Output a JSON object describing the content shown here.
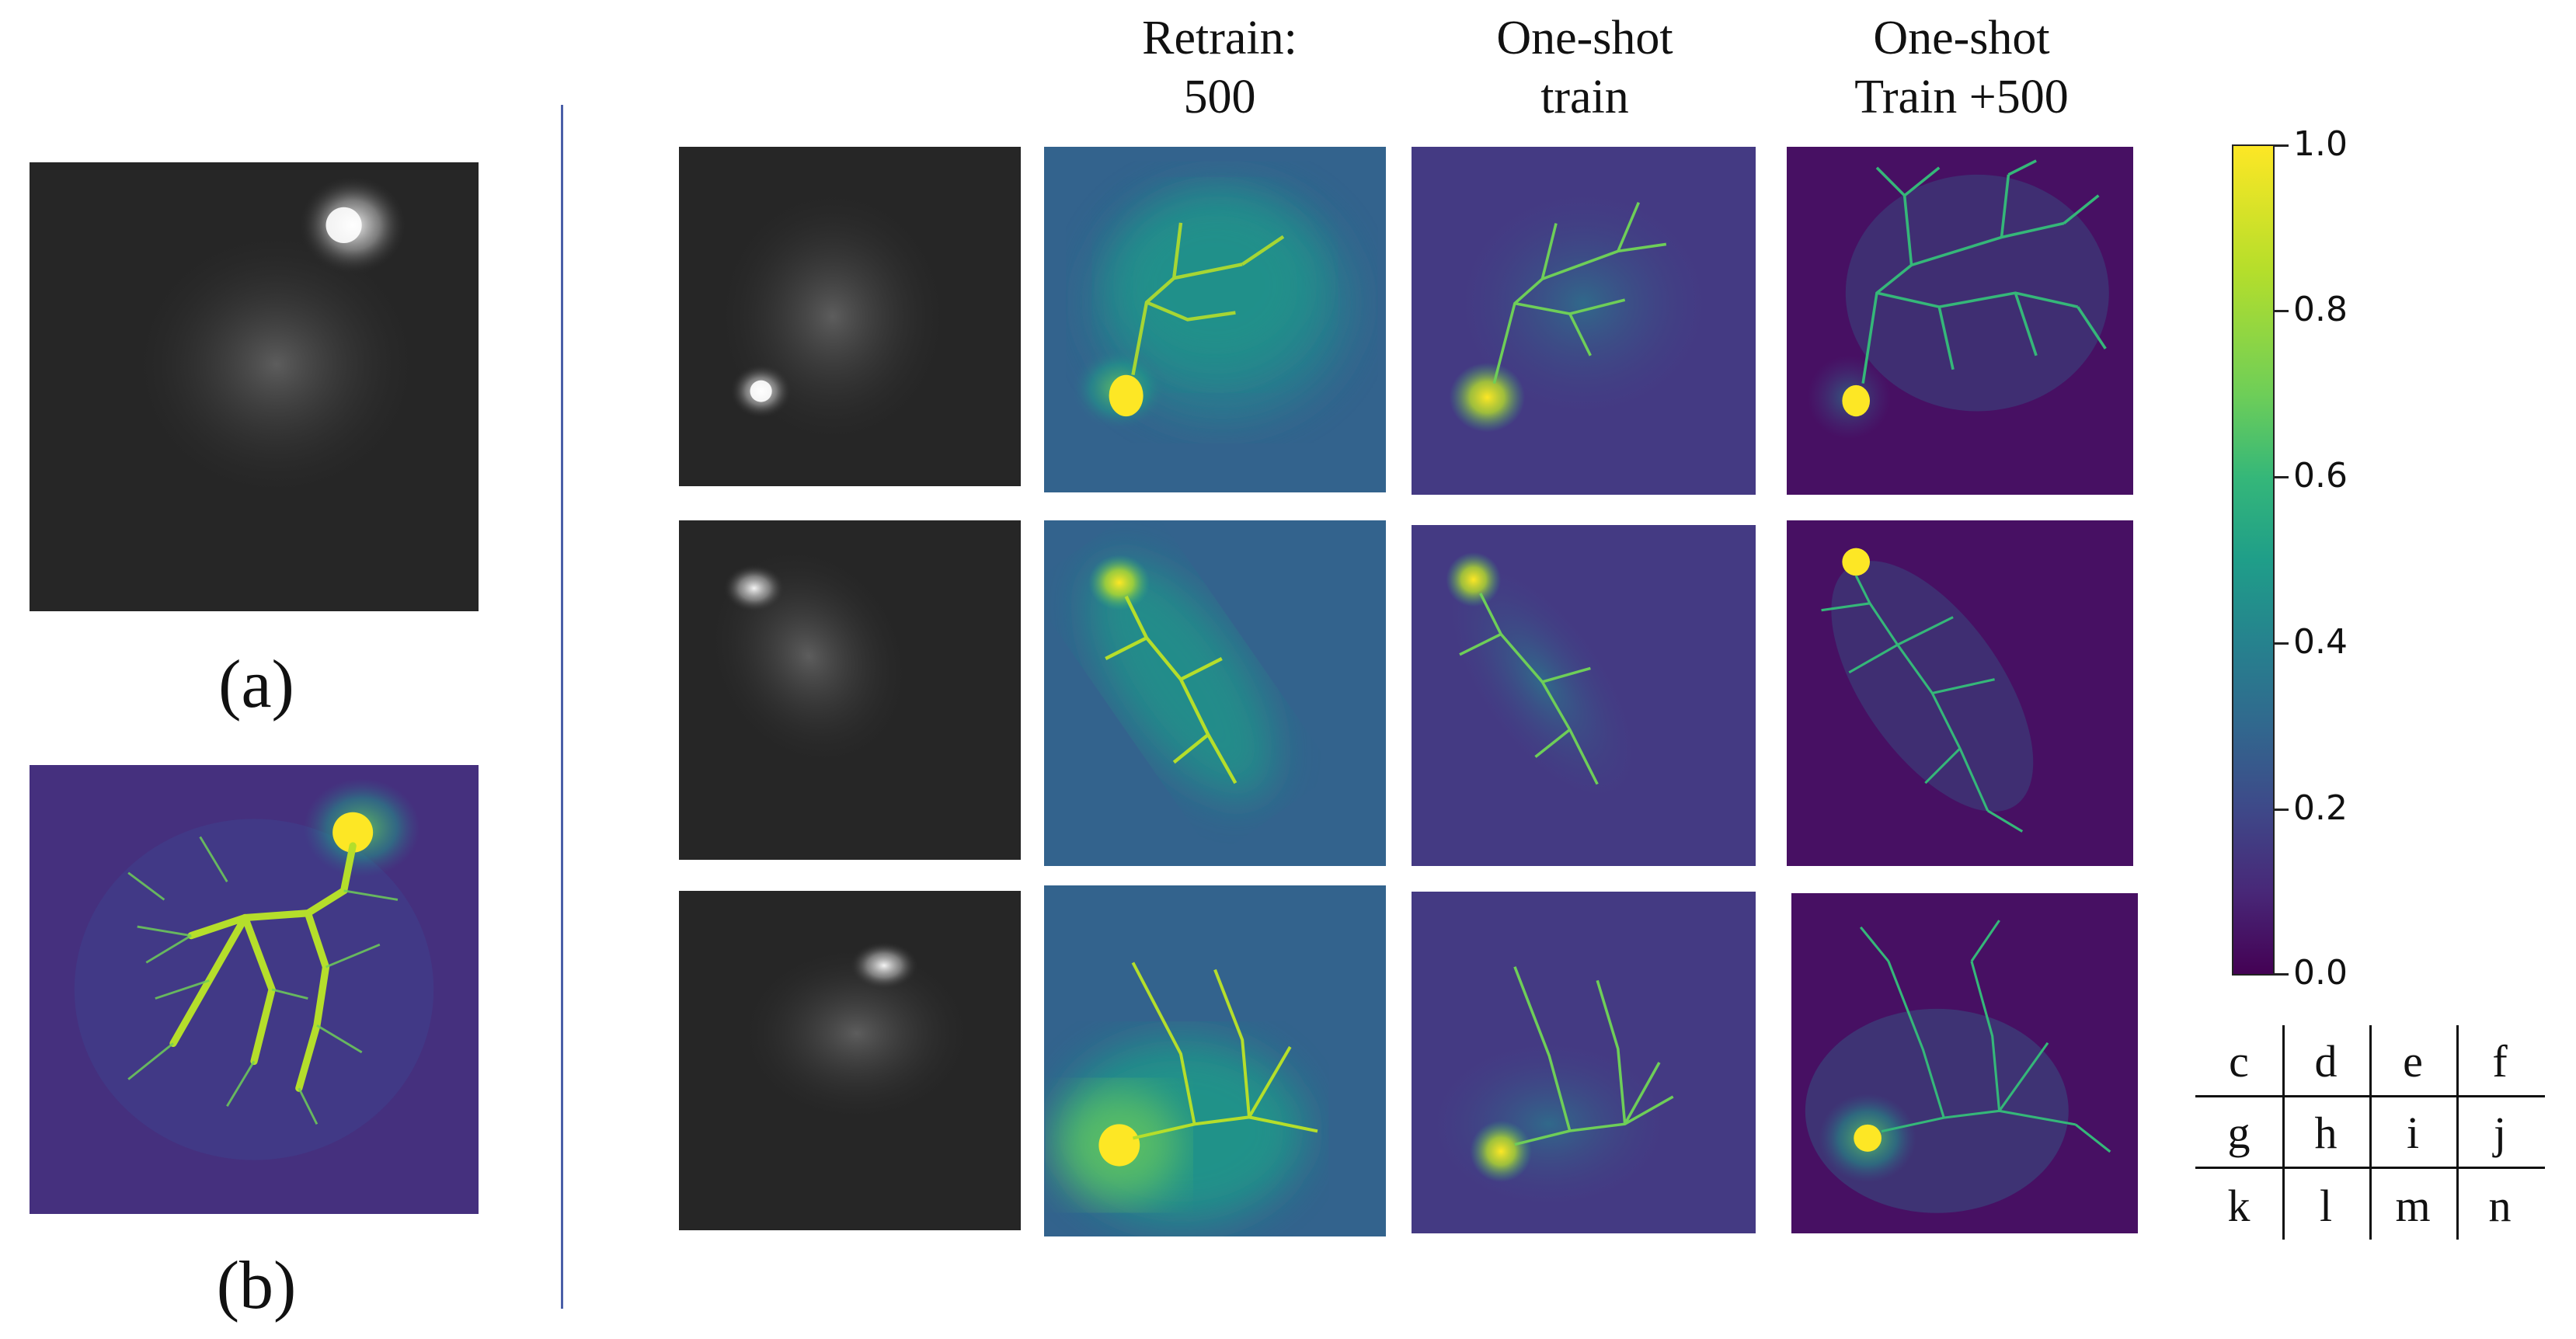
{
  "labels": {
    "a": "(a)",
    "b": "(b)"
  },
  "columns": [
    {
      "line1": "Retrain:",
      "line2": "500"
    },
    {
      "line1": "One-shot",
      "line2": "train"
    },
    {
      "line1": "One-shot",
      "line2": "Train +500"
    }
  ],
  "colorbar": {
    "colormap": "viridis",
    "ticks": [
      "1.0",
      "0.8",
      "0.6",
      "0.4",
      "0.2",
      "0.0"
    ]
  },
  "legend_grid": [
    [
      "c",
      "d",
      "e",
      "f"
    ],
    [
      "g",
      "h",
      "i",
      "j"
    ],
    [
      "k",
      "l",
      "m",
      "n"
    ]
  ],
  "colors": {
    "divider": "#4a5fa8",
    "viridis_low": "#440154",
    "viridis_high": "#fde725"
  }
}
